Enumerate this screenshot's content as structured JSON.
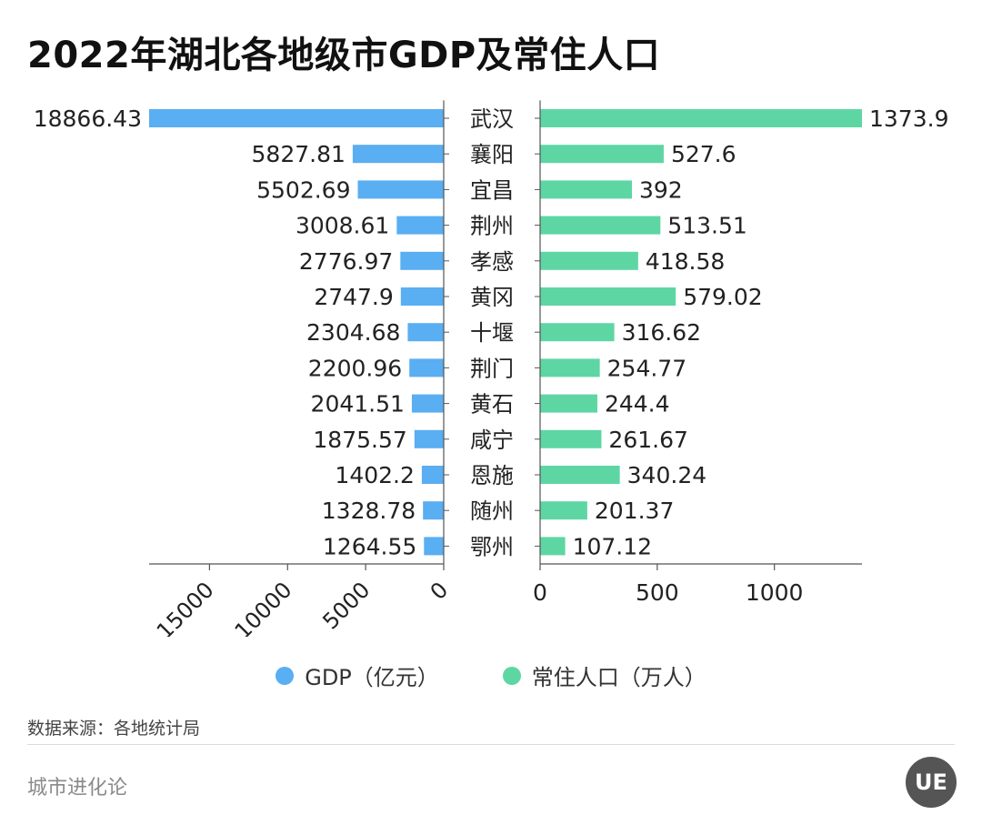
{
  "title": "2022年湖北各地级市GDP及常住人口",
  "colors": {
    "gdp": "#5aaef2",
    "population": "#5ed6a4"
  },
  "chart_data": {
    "type": "bar",
    "orientation": "horizontal-back-to-back",
    "categories": [
      "武汉",
      "襄阳",
      "宜昌",
      "荆州",
      "孝感",
      "黄冈",
      "十堰",
      "荆门",
      "黄石",
      "咸宁",
      "恩施",
      "随州",
      "鄂州"
    ],
    "series": [
      {
        "name": "GDP（亿元）",
        "side": "left",
        "values": [
          18866.43,
          5827.81,
          5502.69,
          3008.61,
          2776.97,
          2747.9,
          2304.68,
          2200.96,
          2041.51,
          1875.57,
          1402.2,
          1328.78,
          1264.55
        ],
        "labels": [
          "18866.43",
          "5827.81",
          "5502.69",
          "3008.61",
          "2776.97",
          "2747.9",
          "2304.68",
          "2200.96",
          "2041.51",
          "1875.57",
          "1402.2",
          "1328.78",
          "1264.55"
        ],
        "xlim": [
          0,
          18866.43
        ],
        "ticks": [
          15000,
          10000,
          5000,
          0
        ]
      },
      {
        "name": "常住人口（万人）",
        "side": "right",
        "values": [
          1373.9,
          527.6,
          392,
          513.51,
          418.58,
          579.02,
          316.62,
          254.77,
          244.4,
          261.67,
          340.24,
          201.37,
          107.12
        ],
        "labels": [
          "1373.9",
          "527.6",
          "392",
          "513.51",
          "418.58",
          "579.02",
          "316.62",
          "254.77",
          "244.4",
          "261.67",
          "340.24",
          "201.37",
          "107.12"
        ],
        "xlim": [
          0,
          1373.9
        ],
        "ticks": [
          0,
          500,
          1000
        ]
      }
    ],
    "legend_position": "bottom-center",
    "grid": false
  },
  "legend": {
    "gdp_label": "GDP（亿元）",
    "population_label": "常住人口（万人）"
  },
  "source": "数据来源：各地统计局",
  "brand": "城市进化论",
  "logo_text": "UE"
}
